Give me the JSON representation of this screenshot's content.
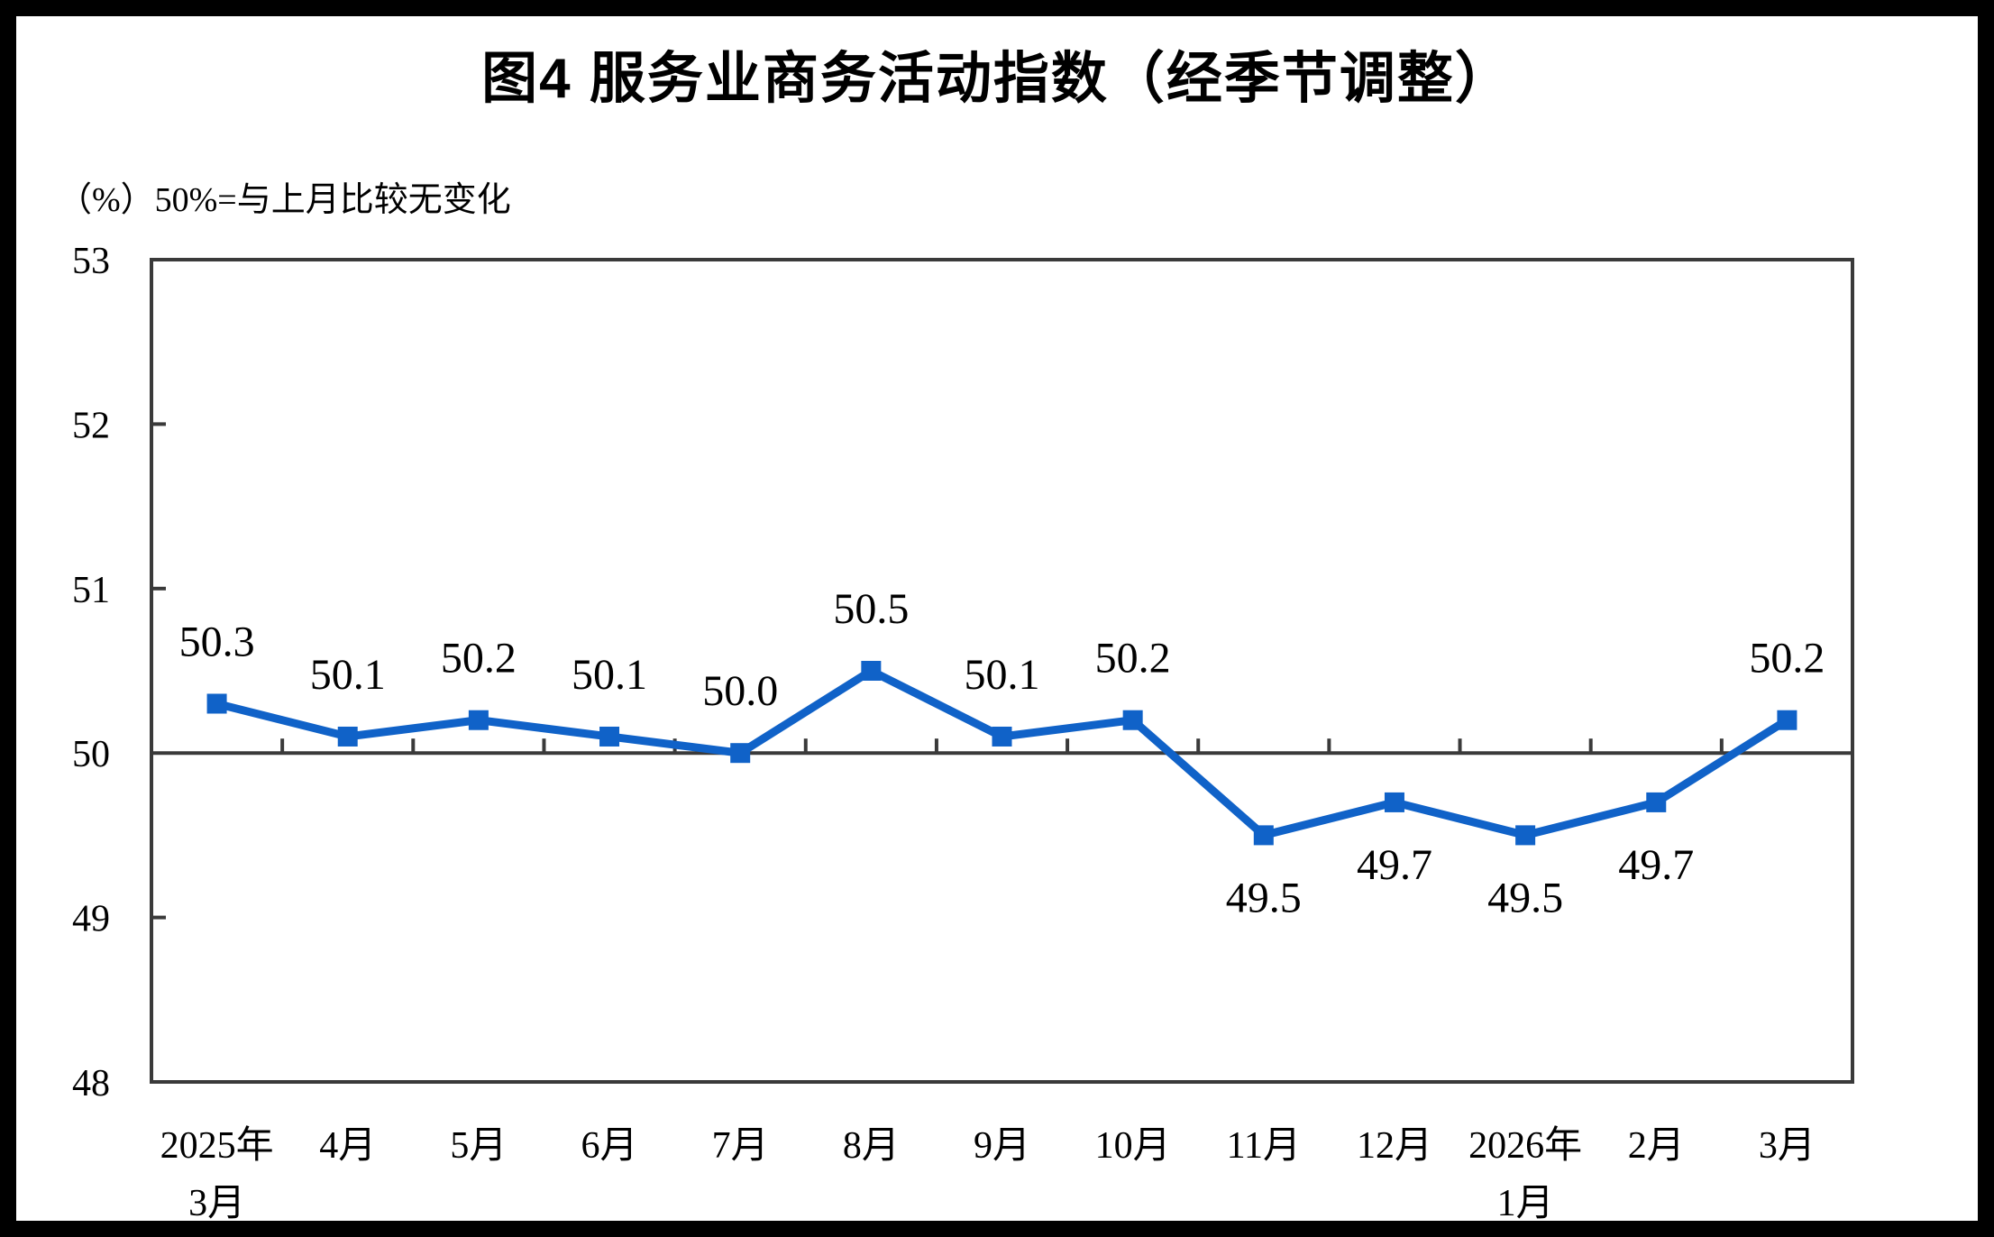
{
  "figure": {
    "title": "图4  服务业商务活动指数（经季节调整）",
    "axis_note": "（%）50%=与上月比较无变化"
  },
  "colors": {
    "line": "#1062C8",
    "axis": "#3A3A3A",
    "text": "#000000",
    "background": "#FFFFFF",
    "page_border": "#000000"
  },
  "chart_data": {
    "type": "line",
    "title": "图4 服务业商务活动指数（经季节调整）",
    "unit_note": "（%）50%=与上月比较无变化",
    "categories": [
      "2025年\n3月",
      "4月",
      "5月",
      "6月",
      "7月",
      "8月",
      "9月",
      "10月",
      "11月",
      "12月",
      "2026年\n1月",
      "2月",
      "3月"
    ],
    "series": [
      {
        "name": "服务业商务活动指数",
        "values": [
          50.3,
          50.1,
          50.2,
          50.1,
          50.0,
          50.5,
          50.1,
          50.2,
          49.5,
          49.7,
          49.5,
          49.7,
          50.2
        ]
      }
    ],
    "data_labels": [
      "50.3",
      "50.1",
      "50.2",
      "50.1",
      "50.0",
      "50.5",
      "50.1",
      "50.2",
      "49.5",
      "49.7",
      "49.5",
      "49.7",
      "50.2"
    ],
    "ylim": [
      48,
      53
    ],
    "yticks": [
      48,
      49,
      50,
      51,
      52,
      53
    ],
    "reference_line": 50,
    "grid": false,
    "legend_position": "none",
    "marker": "square"
  }
}
